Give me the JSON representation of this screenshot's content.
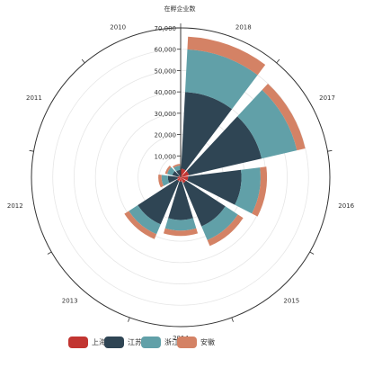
{
  "chart_data": {
    "type": "polar-stacked-bar",
    "radial_axis_title": "在孵企业数",
    "radial_ticks": [
      "10,000",
      "20,000",
      "30,000",
      "40,000",
      "50,000",
      "60,000",
      "70,000"
    ],
    "rmax": 70000,
    "categories": [
      "2018",
      "2017",
      "2016",
      "2015",
      "2014",
      "2013",
      "2012",
      "2011",
      "2010"
    ],
    "series": [
      {
        "name": "上海",
        "color": "#c23531",
        "values": [
          4000,
          4000,
          3500,
          3000,
          2000,
          2000,
          1500,
          1000,
          1000
        ]
      },
      {
        "name": "江苏",
        "color": "#2f4554",
        "values": [
          36000,
          35000,
          25000,
          22000,
          18000,
          22000,
          4500,
          3000,
          2500
        ]
      },
      {
        "name": "浙江",
        "color": "#61a0a8",
        "values": [
          20000,
          17000,
          9000,
          7000,
          5000,
          5000,
          3000,
          2500,
          2000
        ]
      },
      {
        "name": "安徽",
        "color": "#d48265",
        "values": [
          6000,
          4000,
          3000,
          3000,
          2500,
          2500,
          1500,
          1000,
          800
        ]
      }
    ]
  }
}
